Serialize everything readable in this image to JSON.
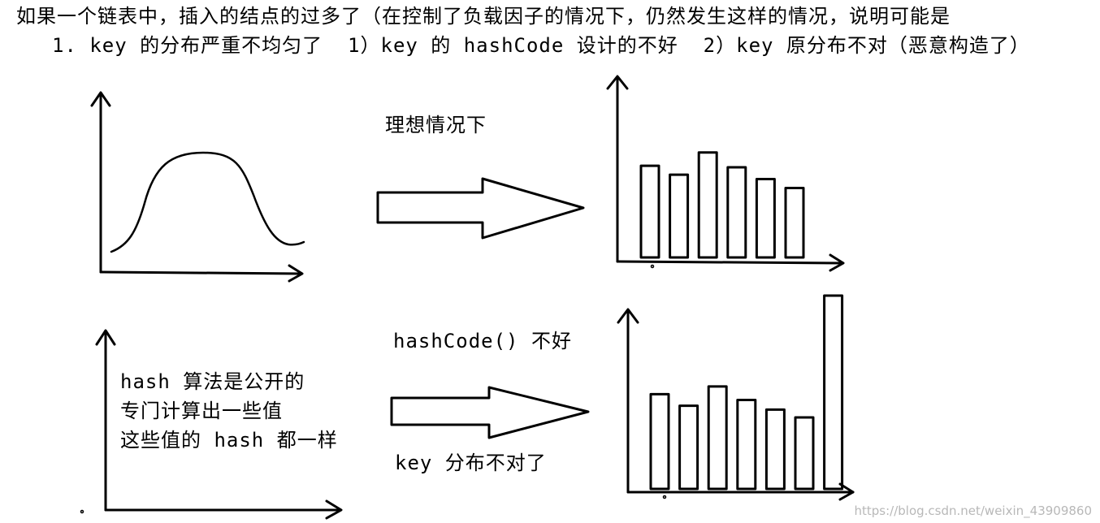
{
  "header": {
    "line1": "如果一个链表中，插入的结点的过多了（在控制了负载因子的情况下，仍然发生这样的情况，说明可能是",
    "line2": "1. key 的分布严重不均匀了  1）key 的 hashCode 设计的不好  2）key 原分布不对（恶意构造了）"
  },
  "top_row": {
    "arrow_label": "理想情况下",
    "bars": [
      0.62,
      0.56,
      0.71,
      0.61,
      0.53,
      0.47
    ]
  },
  "bottom_row": {
    "note_lines": [
      "hash 算法是公开的",
      "专门计算出一些值",
      "这些值的 hash 都一样"
    ],
    "arrow_label_top": "hashCode() 不好",
    "arrow_label_bottom": "key 分布不对了",
    "bars": [
      0.49,
      0.43,
      0.53,
      0.46,
      0.41,
      0.37,
      1.0
    ]
  },
  "watermark": "https://blog.csdn.net/weixin_43909860"
}
